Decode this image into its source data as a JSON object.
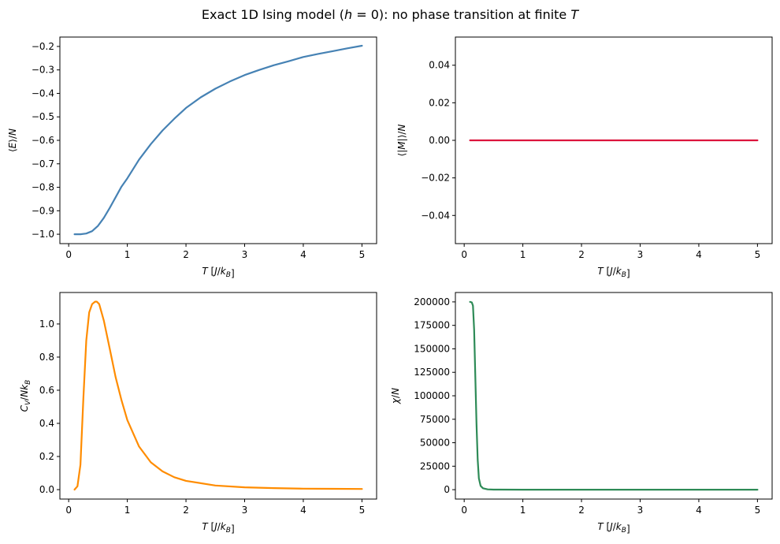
{
  "title": "Exact 1D Ising model (h = 0): no phase transition at finite T",
  "chart_data": [
    {
      "type": "line",
      "panel": "top-left",
      "title": "",
      "xlabel": "T [J/k_B]",
      "ylabel": "⟨E⟩/N",
      "xlim": [
        -0.15,
        5.25
      ],
      "ylim": [
        -1.04,
        -0.16
      ],
      "xticks": [
        0,
        1,
        2,
        3,
        4,
        5
      ],
      "xtick_labels": [
        "0",
        "1",
        "2",
        "3",
        "4",
        "5"
      ],
      "yticks": [
        -1.0,
        -0.9,
        -0.8,
        -0.7,
        -0.6,
        -0.5,
        -0.4,
        -0.3,
        -0.2
      ],
      "ytick_labels": [
        "−1.0",
        "−0.9",
        "−0.8",
        "−0.7",
        "−0.6",
        "−0.5",
        "−0.4",
        "−0.3",
        "−0.2"
      ],
      "grid": false,
      "color": "#4682b4",
      "series": [
        {
          "name": "E/N",
          "x": [
            0.1,
            0.2,
            0.3,
            0.4,
            0.5,
            0.6,
            0.7,
            0.8,
            0.9,
            1.0,
            1.2,
            1.4,
            1.6,
            1.8,
            2.0,
            2.25,
            2.5,
            2.75,
            3.0,
            3.25,
            3.5,
            3.75,
            4.0,
            4.25,
            4.5,
            4.75,
            5.0
          ],
          "values": [
            -1.0,
            -1.0,
            -0.997,
            -0.987,
            -0.964,
            -0.93,
            -0.888,
            -0.843,
            -0.797,
            -0.762,
            -0.682,
            -0.616,
            -0.558,
            -0.508,
            -0.462,
            -0.417,
            -0.38,
            -0.349,
            -0.322,
            -0.3,
            -0.28,
            -0.263,
            -0.245,
            -0.232,
            -0.22,
            -0.208,
            -0.197
          ]
        }
      ]
    },
    {
      "type": "line",
      "panel": "top-right",
      "title": "",
      "xlabel": "T [J/k_B]",
      "ylabel": "⟨|M|⟩/N",
      "xlim": [
        -0.15,
        5.25
      ],
      "ylim": [
        -0.055,
        0.055
      ],
      "xticks": [
        0,
        1,
        2,
        3,
        4,
        5
      ],
      "xtick_labels": [
        "0",
        "1",
        "2",
        "3",
        "4",
        "5"
      ],
      "yticks": [
        -0.04,
        -0.02,
        0.0,
        0.02,
        0.04
      ],
      "ytick_labels": [
        "−0.04",
        "−0.02",
        "0.00",
        "0.02",
        "0.04"
      ],
      "grid": false,
      "color": "#dc143c",
      "series": [
        {
          "name": "|M|/N",
          "x": [
            0.1,
            1.0,
            2.0,
            3.0,
            4.0,
            5.0
          ],
          "values": [
            0.0,
            0.0,
            0.0,
            0.0,
            0.0,
            0.0
          ]
        }
      ]
    },
    {
      "type": "line",
      "panel": "bottom-left",
      "title": "",
      "xlabel": "T [J/k_B]",
      "ylabel": "C_V/Nk_B",
      "xlim": [
        -0.15,
        5.25
      ],
      "ylim": [
        -0.057,
        1.19
      ],
      "xticks": [
        0,
        1,
        2,
        3,
        4,
        5
      ],
      "xtick_labels": [
        "0",
        "1",
        "2",
        "3",
        "4",
        "5"
      ],
      "yticks": [
        0.0,
        0.2,
        0.4,
        0.6,
        0.8,
        1.0
      ],
      "ytick_labels": [
        "0.0",
        "0.2",
        "0.4",
        "0.6",
        "0.8",
        "1.0"
      ],
      "grid": false,
      "color": "#ff8c00",
      "series": [
        {
          "name": "Cv/NkB",
          "x": [
            0.1,
            0.15,
            0.2,
            0.25,
            0.3,
            0.35,
            0.4,
            0.45,
            0.48,
            0.52,
            0.6,
            0.7,
            0.8,
            0.9,
            1.0,
            1.2,
            1.4,
            1.6,
            1.8,
            2.0,
            2.5,
            3.0,
            3.5,
            4.0,
            4.5,
            5.0
          ],
          "values": [
            0.0,
            0.02,
            0.15,
            0.55,
            0.9,
            1.07,
            1.12,
            1.135,
            1.135,
            1.12,
            1.02,
            0.85,
            0.68,
            0.54,
            0.42,
            0.26,
            0.165,
            0.11,
            0.075,
            0.053,
            0.025,
            0.014,
            0.009,
            0.006,
            0.005,
            0.004
          ]
        }
      ]
    },
    {
      "type": "line",
      "panel": "bottom-right",
      "title": "",
      "xlabel": "T [J/k_B]",
      "ylabel": "χ/N",
      "xlim": [
        -0.15,
        5.25
      ],
      "ylim": [
        -10000,
        210000
      ],
      "xticks": [
        0,
        1,
        2,
        3,
        4,
        5
      ],
      "xtick_labels": [
        "0",
        "1",
        "2",
        "3",
        "4",
        "5"
      ],
      "yticks": [
        0,
        25000,
        50000,
        75000,
        100000,
        125000,
        150000,
        175000,
        200000
      ],
      "ytick_labels": [
        "0",
        "25000",
        "50000",
        "75000",
        "100000",
        "125000",
        "150000",
        "175000",
        "200000"
      ],
      "grid": false,
      "color": "#2e8b57",
      "series": [
        {
          "name": "chi/N",
          "x": [
            0.1,
            0.13,
            0.15,
            0.17,
            0.19,
            0.21,
            0.23,
            0.25,
            0.28,
            0.32,
            0.4,
            0.5,
            1.0,
            2.0,
            3.0,
            4.0,
            5.0
          ],
          "values": [
            200000,
            199500,
            196000,
            170000,
            120000,
            70000,
            32000,
            12000,
            4000,
            1500,
            300,
            50,
            7,
            3,
            2,
            1.5,
            1.2
          ]
        }
      ]
    }
  ]
}
